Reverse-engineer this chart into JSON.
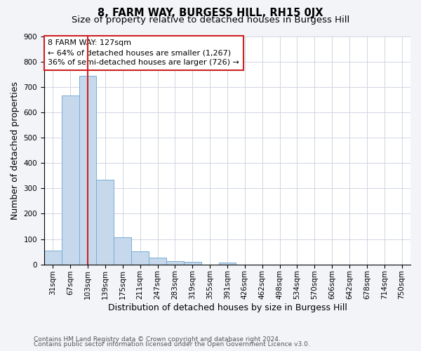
{
  "title": "8, FARM WAY, BURGESS HILL, RH15 0JX",
  "subtitle": "Size of property relative to detached houses in Burgess Hill",
  "xlabel": "Distribution of detached houses by size in Burgess Hill",
  "ylabel": "Number of detached properties",
  "bins": [
    "31sqm",
    "67sqm",
    "103sqm",
    "139sqm",
    "175sqm",
    "211sqm",
    "247sqm",
    "283sqm",
    "319sqm",
    "355sqm",
    "391sqm",
    "426sqm",
    "462sqm",
    "498sqm",
    "534sqm",
    "570sqm",
    "606sqm",
    "642sqm",
    "678sqm",
    "714sqm",
    "750sqm"
  ],
  "bar_heights": [
    55,
    665,
    745,
    335,
    107,
    52,
    27,
    14,
    10,
    0,
    8,
    0,
    0,
    0,
    0,
    0,
    0,
    0,
    0,
    0,
    0
  ],
  "bar_color": "#c5d8ec",
  "bar_edge_color": "#7aadd4",
  "property_bin_index": 2,
  "vline_color": "#cc2222",
  "annotation_box_color": "#cc2222",
  "annotation_line1": "8 FARM WAY: 127sqm",
  "annotation_line2": "← 64% of detached houses are smaller (1,267)",
  "annotation_line3": "36% of semi-detached houses are larger (726) →",
  "ylim": [
    0,
    900
  ],
  "yticks": [
    0,
    100,
    200,
    300,
    400,
    500,
    600,
    700,
    800,
    900
  ],
  "footnote1": "Contains HM Land Registry data © Crown copyright and database right 2024.",
  "footnote2": "Contains public sector information licensed under the Open Government Licence v3.0.",
  "background_color": "#f2f4f8",
  "plot_bg_color": "#ffffff",
  "grid_color": "#c8d0dc",
  "title_fontsize": 10.5,
  "subtitle_fontsize": 9.5,
  "annotation_fontsize": 8,
  "tick_fontsize": 7.5,
  "label_fontsize": 9,
  "footnote_fontsize": 6.5
}
